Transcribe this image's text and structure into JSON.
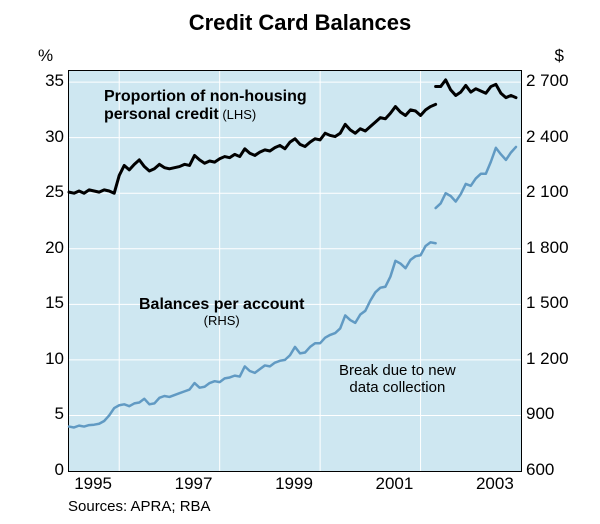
{
  "title": "Credit Card Balances",
  "axis_left_label": "%",
  "axis_right_label": "$",
  "sources": "Sources: APRA; RBA",
  "plot": {
    "background_color": "#cee7f1",
    "grid_color": "#ffffff",
    "border_color": "#000000",
    "x_range": [
      1994.5,
      2003.5
    ],
    "x_ticks": [
      1995,
      1997,
      1999,
      2001,
      2003
    ],
    "x_gridlines": [
      1995.5,
      1997.5,
      1999.5,
      2001.5
    ],
    "y_left": {
      "range": [
        0,
        36
      ],
      "ticks": [
        0,
        5,
        10,
        15,
        20,
        25,
        30,
        35
      ]
    },
    "y_right": {
      "range": [
        600,
        2760
      ],
      "ticks": [
        600,
        900,
        1200,
        1500,
        1800,
        2100,
        2400,
        2700
      ],
      "tick_labels": [
        "600",
        "900",
        "1 200",
        "1 500",
        "1 800",
        "2 100",
        "2 400",
        "2 700"
      ]
    }
  },
  "series": {
    "proportion": {
      "label": "Proportion of non-housing personal credit",
      "label_sub": "(LHS)",
      "color": "#000000",
      "stroke_width": 3.0,
      "axis": "left",
      "segments": [
        [
          [
            1994.5,
            25.1
          ],
          [
            1994.6,
            25.0
          ],
          [
            1994.7,
            25.2
          ],
          [
            1994.8,
            25.0
          ],
          [
            1994.9,
            25.3
          ],
          [
            1995.0,
            25.2
          ],
          [
            1995.1,
            25.1
          ],
          [
            1995.2,
            25.3
          ],
          [
            1995.3,
            25.2
          ],
          [
            1995.4,
            25.0
          ],
          [
            1995.5,
            26.6
          ],
          [
            1995.6,
            27.5
          ],
          [
            1995.7,
            27.1
          ],
          [
            1995.8,
            27.6
          ],
          [
            1995.9,
            28.0
          ],
          [
            1996.0,
            27.4
          ],
          [
            1996.1,
            27.0
          ],
          [
            1996.2,
            27.2
          ],
          [
            1996.3,
            27.6
          ],
          [
            1996.4,
            27.3
          ],
          [
            1996.5,
            27.2
          ],
          [
            1996.6,
            27.3
          ],
          [
            1996.7,
            27.4
          ],
          [
            1996.8,
            27.6
          ],
          [
            1996.9,
            27.5
          ],
          [
            1997.0,
            28.4
          ],
          [
            1997.1,
            28.0
          ],
          [
            1997.2,
            27.7
          ],
          [
            1997.3,
            27.9
          ],
          [
            1997.4,
            27.8
          ],
          [
            1997.5,
            28.1
          ],
          [
            1997.6,
            28.3
          ],
          [
            1997.7,
            28.2
          ],
          [
            1997.8,
            28.5
          ],
          [
            1997.9,
            28.3
          ],
          [
            1998.0,
            29.0
          ],
          [
            1998.1,
            28.6
          ],
          [
            1998.2,
            28.4
          ],
          [
            1998.3,
            28.7
          ],
          [
            1998.4,
            28.9
          ],
          [
            1998.5,
            28.8
          ],
          [
            1998.6,
            29.1
          ],
          [
            1998.7,
            29.3
          ],
          [
            1998.8,
            29.0
          ],
          [
            1998.9,
            29.6
          ],
          [
            1999.0,
            29.9
          ],
          [
            1999.1,
            29.4
          ],
          [
            1999.2,
            29.2
          ],
          [
            1999.3,
            29.6
          ],
          [
            1999.4,
            29.9
          ],
          [
            1999.5,
            29.8
          ],
          [
            1999.6,
            30.4
          ],
          [
            1999.7,
            30.2
          ],
          [
            1999.8,
            30.1
          ],
          [
            1999.9,
            30.4
          ],
          [
            2000.0,
            31.2
          ],
          [
            2000.1,
            30.7
          ],
          [
            2000.2,
            30.4
          ],
          [
            2000.3,
            30.8
          ],
          [
            2000.4,
            30.6
          ],
          [
            2000.5,
            31.0
          ],
          [
            2000.6,
            31.4
          ],
          [
            2000.7,
            31.8
          ],
          [
            2000.8,
            31.7
          ],
          [
            2000.9,
            32.2
          ],
          [
            2001.0,
            32.8
          ],
          [
            2001.1,
            32.3
          ],
          [
            2001.2,
            32.0
          ],
          [
            2001.3,
            32.5
          ],
          [
            2001.4,
            32.4
          ],
          [
            2001.5,
            32.0
          ],
          [
            2001.6,
            32.5
          ],
          [
            2001.7,
            32.8
          ],
          [
            2001.8,
            33.0
          ]
        ],
        [
          [
            2001.8,
            34.6
          ],
          [
            2001.9,
            34.6
          ],
          [
            2002.0,
            35.2
          ],
          [
            2002.1,
            34.3
          ],
          [
            2002.2,
            33.8
          ],
          [
            2002.3,
            34.1
          ],
          [
            2002.4,
            34.7
          ],
          [
            2002.5,
            34.1
          ],
          [
            2002.6,
            34.4
          ],
          [
            2002.7,
            34.2
          ],
          [
            2002.8,
            34.0
          ],
          [
            2002.9,
            34.6
          ],
          [
            2003.0,
            34.8
          ],
          [
            2003.1,
            34.0
          ],
          [
            2003.2,
            33.6
          ],
          [
            2003.3,
            33.8
          ],
          [
            2003.4,
            33.6
          ]
        ]
      ]
    },
    "balances": {
      "label": "Balances per account",
      "label_sub": "(RHS)",
      "color": "#619ac3",
      "stroke_width": 2.5,
      "axis": "right",
      "segments": [
        [
          [
            1994.5,
            840
          ],
          [
            1994.6,
            835
          ],
          [
            1994.7,
            845
          ],
          [
            1994.8,
            840
          ],
          [
            1994.9,
            848
          ],
          [
            1995.0,
            850
          ],
          [
            1995.1,
            855
          ],
          [
            1995.2,
            870
          ],
          [
            1995.3,
            900
          ],
          [
            1995.4,
            940
          ],
          [
            1995.5,
            955
          ],
          [
            1995.6,
            960
          ],
          [
            1995.7,
            950
          ],
          [
            1995.8,
            965
          ],
          [
            1995.9,
            970
          ],
          [
            1996.0,
            990
          ],
          [
            1996.1,
            960
          ],
          [
            1996.2,
            965
          ],
          [
            1996.3,
            995
          ],
          [
            1996.4,
            1005
          ],
          [
            1996.5,
            1000
          ],
          [
            1996.6,
            1010
          ],
          [
            1996.7,
            1020
          ],
          [
            1996.8,
            1030
          ],
          [
            1996.9,
            1040
          ],
          [
            1997.0,
            1075
          ],
          [
            1997.1,
            1050
          ],
          [
            1997.2,
            1055
          ],
          [
            1997.3,
            1075
          ],
          [
            1997.4,
            1085
          ],
          [
            1997.5,
            1080
          ],
          [
            1997.6,
            1100
          ],
          [
            1997.7,
            1105
          ],
          [
            1997.8,
            1115
          ],
          [
            1997.9,
            1110
          ],
          [
            1998.0,
            1165
          ],
          [
            1998.1,
            1140
          ],
          [
            1998.2,
            1130
          ],
          [
            1998.3,
            1150
          ],
          [
            1998.4,
            1170
          ],
          [
            1998.5,
            1165
          ],
          [
            1998.6,
            1185
          ],
          [
            1998.7,
            1195
          ],
          [
            1998.8,
            1200
          ],
          [
            1998.9,
            1225
          ],
          [
            1999.0,
            1270
          ],
          [
            1999.1,
            1235
          ],
          [
            1999.2,
            1240
          ],
          [
            1999.3,
            1270
          ],
          [
            1999.4,
            1290
          ],
          [
            1999.5,
            1290
          ],
          [
            1999.6,
            1320
          ],
          [
            1999.7,
            1335
          ],
          [
            1999.8,
            1345
          ],
          [
            1999.9,
            1370
          ],
          [
            2000.0,
            1440
          ],
          [
            2000.1,
            1415
          ],
          [
            2000.2,
            1400
          ],
          [
            2000.3,
            1445
          ],
          [
            2000.4,
            1465
          ],
          [
            2000.5,
            1520
          ],
          [
            2000.6,
            1565
          ],
          [
            2000.7,
            1590
          ],
          [
            2000.8,
            1595
          ],
          [
            2000.9,
            1650
          ],
          [
            2001.0,
            1735
          ],
          [
            2001.1,
            1720
          ],
          [
            2001.2,
            1695
          ],
          [
            2001.3,
            1740
          ],
          [
            2001.4,
            1760
          ],
          [
            2001.5,
            1765
          ],
          [
            2001.6,
            1815
          ],
          [
            2001.7,
            1835
          ],
          [
            2001.8,
            1830
          ]
        ],
        [
          [
            2001.8,
            2020
          ],
          [
            2001.9,
            2045
          ],
          [
            2002.0,
            2100
          ],
          [
            2002.1,
            2085
          ],
          [
            2002.2,
            2055
          ],
          [
            2002.3,
            2095
          ],
          [
            2002.4,
            2150
          ],
          [
            2002.5,
            2140
          ],
          [
            2002.6,
            2180
          ],
          [
            2002.7,
            2205
          ],
          [
            2002.8,
            2205
          ],
          [
            2002.9,
            2270
          ],
          [
            2003.0,
            2345
          ],
          [
            2003.1,
            2310
          ],
          [
            2003.2,
            2280
          ],
          [
            2003.3,
            2320
          ],
          [
            2003.4,
            2350
          ]
        ]
      ]
    }
  },
  "annotations": {
    "proportion_label": {
      "line1": "Proportion of non-housing",
      "line2": "personal credit",
      "sub": " (LHS)"
    },
    "balances_label": {
      "line1": "Balances per account",
      "sub": "(RHS)"
    },
    "break_note": {
      "line1": "Break due to new",
      "line2": "data collection"
    }
  }
}
